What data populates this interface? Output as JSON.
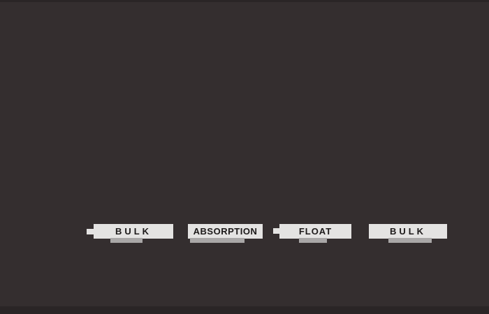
{
  "colors": {
    "background": "#342e2f",
    "band": "#2a2526",
    "label_fill": "#e4e3e2",
    "label_shadow": "#a9a7a7",
    "label_text": "#1c1919"
  },
  "diagram": {
    "labels": [
      {
        "text": "BULK"
      },
      {
        "text": "ABSORPTION"
      },
      {
        "text": "FLOAT"
      },
      {
        "text": "BULK"
      }
    ]
  }
}
